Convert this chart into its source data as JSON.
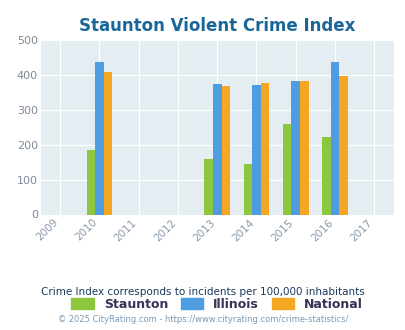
{
  "title": "Staunton Violent Crime Index",
  "years": [
    2009,
    2010,
    2011,
    2012,
    2013,
    2014,
    2015,
    2016,
    2017
  ],
  "data_years": [
    2010,
    2013,
    2014,
    2015,
    2016
  ],
  "staunton": [
    183,
    160,
    143,
    260,
    222
  ],
  "illinois": [
    435,
    373,
    370,
    383,
    437
  ],
  "national": [
    407,
    367,
    377,
    383,
    397
  ],
  "staunton_color": "#8dc63f",
  "illinois_color": "#4d9de0",
  "national_color": "#f5a623",
  "bg_color": "#e4eef2",
  "ylim": [
    0,
    500
  ],
  "yticks": [
    0,
    100,
    200,
    300,
    400,
    500
  ],
  "bar_width": 0.22,
  "subtitle": "Crime Index corresponds to incidents per 100,000 inhabitants",
  "footer": "© 2025 CityRating.com - https://www.cityrating.com/crime-statistics/",
  "title_color": "#1a6699",
  "subtitle_color": "#1a3a5c",
  "footer_color": "#7a9ab5",
  "xtick_color": "#8899aa",
  "ytick_color": "#7a8a99",
  "grid_color": "#ffffff",
  "legend_labels": [
    "Staunton",
    "Illinois",
    "National"
  ],
  "legend_text_color": "#333355"
}
